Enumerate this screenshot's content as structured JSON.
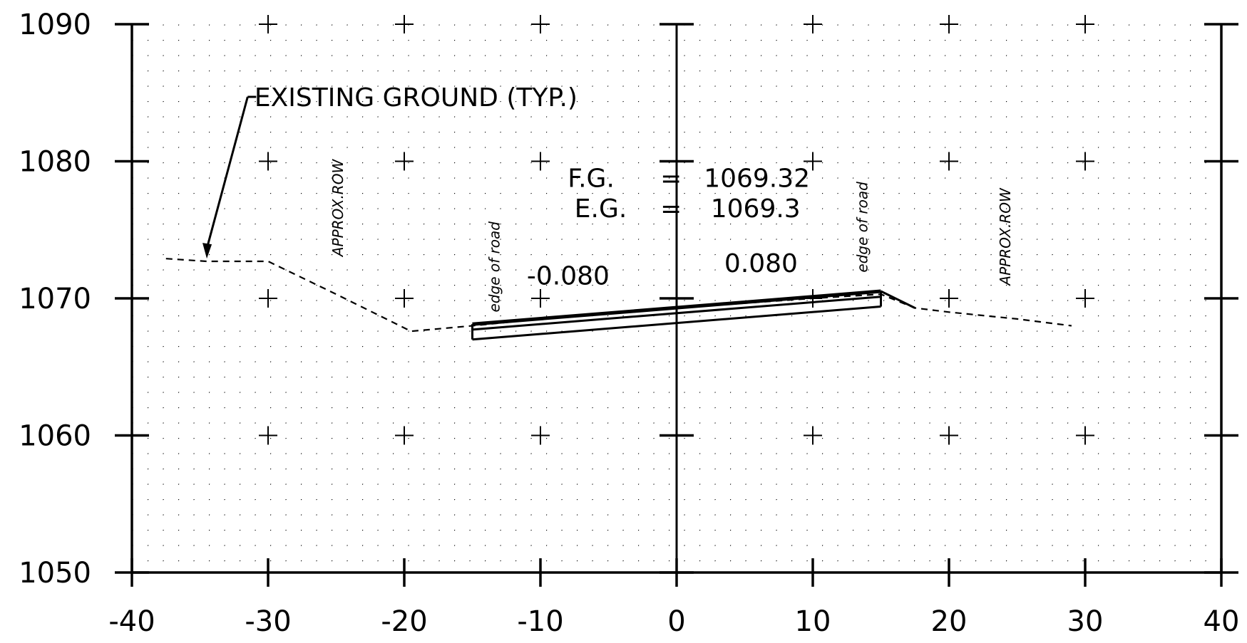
{
  "chart_data": {
    "type": "line",
    "title": "",
    "xlabel": "",
    "ylabel": "",
    "xlim": [
      -40,
      40
    ],
    "ylim": [
      1050,
      1090
    ],
    "grid": true,
    "x_ticks": [
      -40,
      -30,
      -20,
      -10,
      0,
      10,
      20,
      30,
      40
    ],
    "y_ticks": [
      1050,
      1060,
      1070,
      1080,
      1090
    ],
    "x_tick_labels": [
      "-40",
      "-30",
      "-20",
      "-10",
      "0",
      "10",
      "20",
      "30",
      "40"
    ],
    "y_tick_labels": [
      "1050",
      "1060",
      "1070",
      "1080",
      "1090"
    ],
    "series": [
      {
        "name": "EXISTING GROUND (TYP.)",
        "style": "dashed",
        "points": [
          [
            -37.5,
            1072.9
          ],
          [
            -34.5,
            1072.7
          ],
          [
            -30,
            1072.7
          ],
          [
            -25,
            1070.3
          ],
          [
            -19.5,
            1067.6
          ],
          [
            -15,
            1068.0
          ],
          [
            -10,
            1068.5
          ],
          [
            0,
            1069.3
          ],
          [
            10,
            1070.0
          ],
          [
            15,
            1070.3
          ],
          [
            17.5,
            1069.3
          ],
          [
            20,
            1069.0
          ],
          [
            25,
            1068.5
          ],
          [
            29,
            1068.0
          ]
        ]
      },
      {
        "style": "solid-heavy",
        "points": [
          [
            -15,
            1068.12
          ],
          [
            15,
            1070.52
          ]
        ]
      },
      {
        "style": "solid",
        "points": [
          [
            -15,
            1067.72
          ],
          [
            15,
            1070.12
          ]
        ]
      },
      {
        "style": "solid",
        "points": [
          [
            -15,
            1067.0
          ],
          [
            15,
            1069.4
          ]
        ]
      }
    ],
    "extra_segments": [
      [
        [
          -15,
          1068.12
        ],
        [
          -15,
          1067.0
        ]
      ],
      [
        [
          15,
          1070.52
        ],
        [
          15,
          1069.4
        ]
      ],
      [
        [
          15,
          1070.52
        ],
        [
          17.5,
          1069.3
        ]
      ]
    ],
    "annotations": [
      {
        "text": "EXISTING GROUND (TYP.)",
        "x": -31,
        "y": 1084.7,
        "arrow_from": [
          -31.5,
          1084.7
        ],
        "arrow_to": [
          -34.5,
          1072.9
        ]
      },
      {
        "text": "F.G.",
        "x": -8,
        "y": 1078.8
      },
      {
        "text": "=",
        "x": -1.2,
        "y": 1078.8
      },
      {
        "text": "1069.32",
        "x": 2,
        "y": 1078.8
      },
      {
        "text": "E.G.",
        "x": -7.5,
        "y": 1076.6
      },
      {
        "text": "=",
        "x": -1.2,
        "y": 1076.6
      },
      {
        "text": "1069.3",
        "x": 2.5,
        "y": 1076.6
      },
      {
        "text": "-0.080",
        "x": -11,
        "y": 1071.7
      },
      {
        "text": "0.080",
        "x": 3.5,
        "y": 1072.6
      }
    ],
    "vertical_labels": [
      {
        "text": "APPROX.ROW",
        "x": -24.5,
        "y": 1076.6
      },
      {
        "text": "edge of road",
        "x": -13,
        "y": 1072.3
      },
      {
        "text": "edge of road",
        "x": 14,
        "y": 1075.2
      },
      {
        "text": "APPROX.ROW",
        "x": 24.5,
        "y": 1074.5
      }
    ]
  }
}
